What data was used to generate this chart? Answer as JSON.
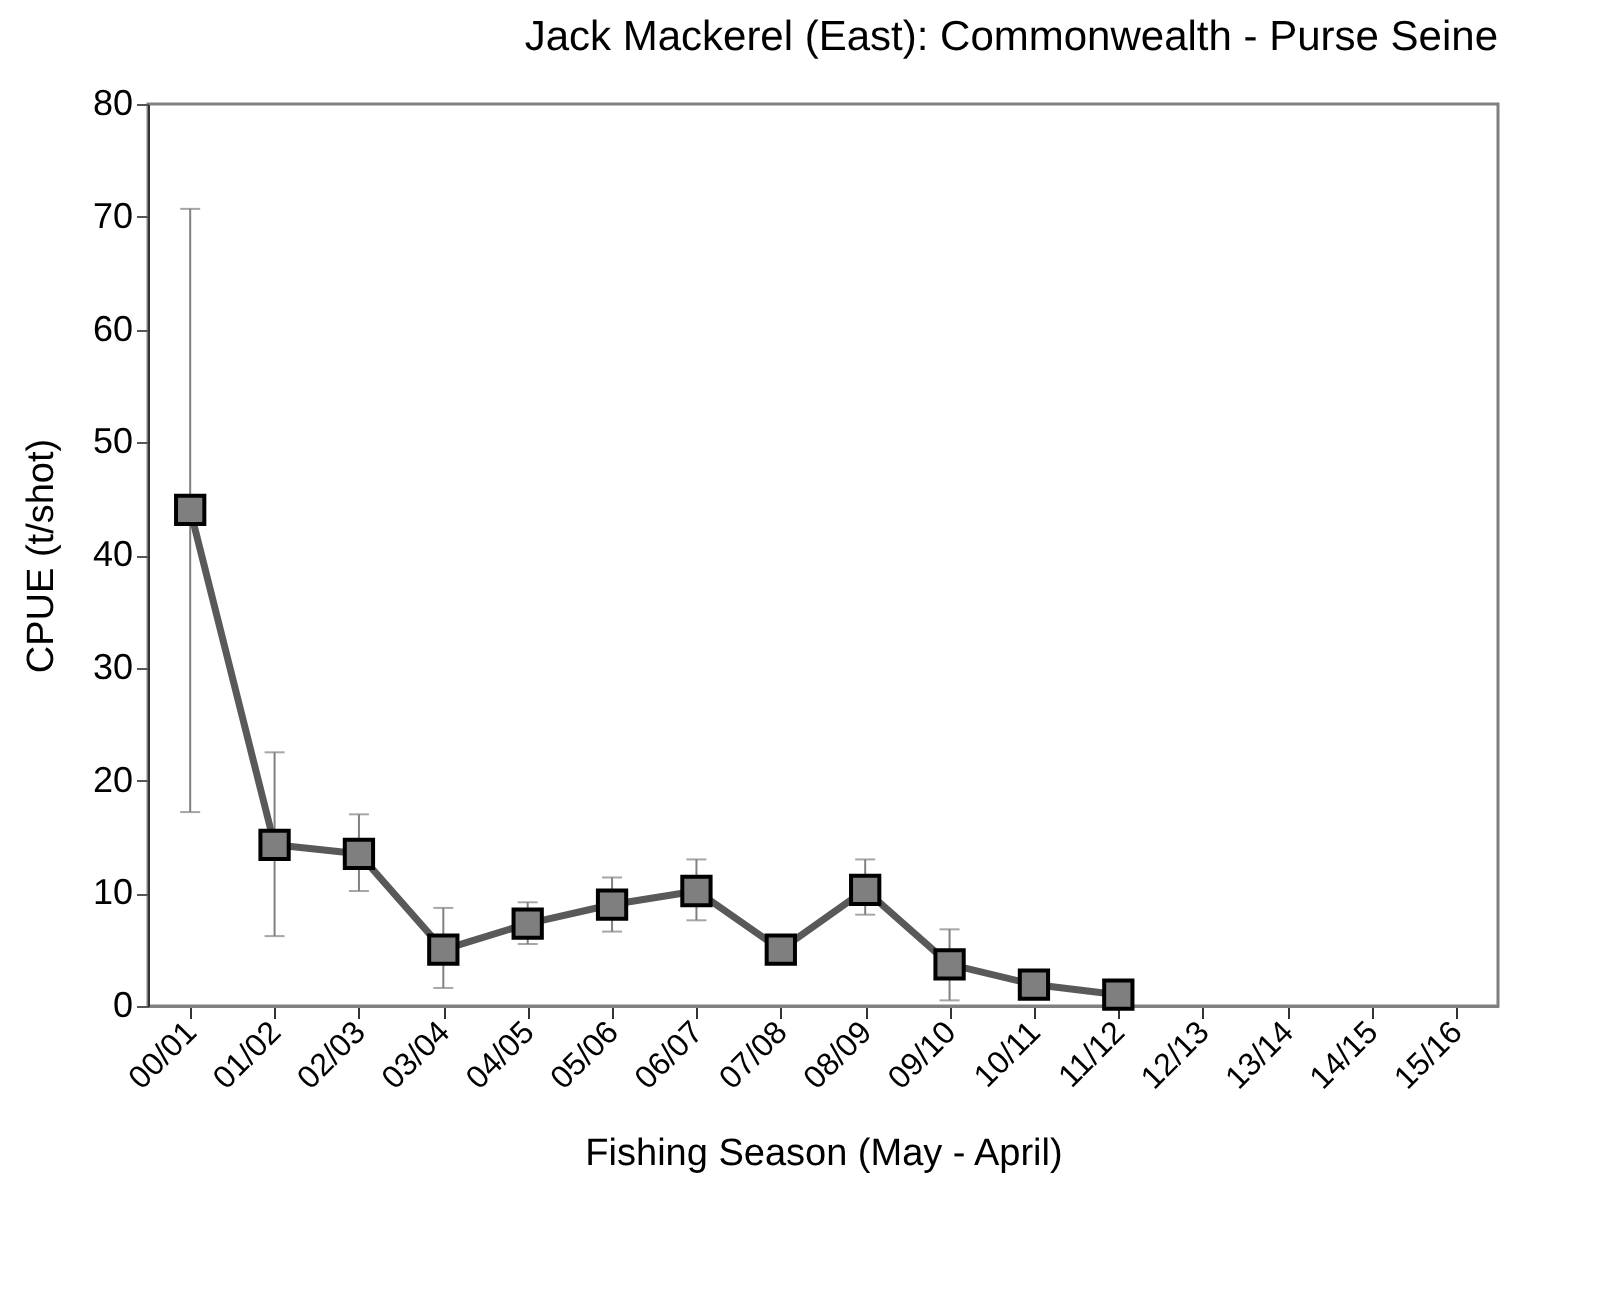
{
  "chart_data": {
    "type": "line",
    "title": "Jack Mackerel (East): Commonwealth - Purse Seine",
    "xlabel": "Fishing Season (May - April)",
    "ylabel": "CPUE (t/shot)",
    "categories": [
      "00/01",
      "01/02",
      "02/03",
      "03/04",
      "04/05",
      "05/06",
      "06/07",
      "07/08",
      "08/09",
      "09/10",
      "10/11",
      "11/12",
      "12/13",
      "13/14",
      "14/15",
      "15/16"
    ],
    "series": [
      {
        "color": "#595959",
        "values": [
          44,
          14.3,
          13.5,
          5,
          7.3,
          9,
          10.2,
          5,
          10.3,
          3.7,
          1.9,
          1.0,
          null,
          null,
          null,
          null
        ],
        "errors": [
          [
            17.2,
            70.7
          ],
          [
            6.2,
            22.5
          ],
          [
            10.2,
            17
          ],
          [
            1.6,
            8.7
          ],
          [
            5.5,
            9.2
          ],
          [
            6.6,
            11.4
          ],
          [
            7.6,
            13
          ],
          null,
          [
            8.1,
            13
          ],
          [
            0.5,
            6.8
          ],
          null,
          null,
          null,
          null,
          null,
          null
        ]
      }
    ],
    "ylim": [
      0,
      80
    ],
    "yticks": [
      0,
      10,
      20,
      30,
      40,
      50,
      60,
      70,
      80
    ],
    "grid": false,
    "marker": "square",
    "line_style": "solid"
  }
}
